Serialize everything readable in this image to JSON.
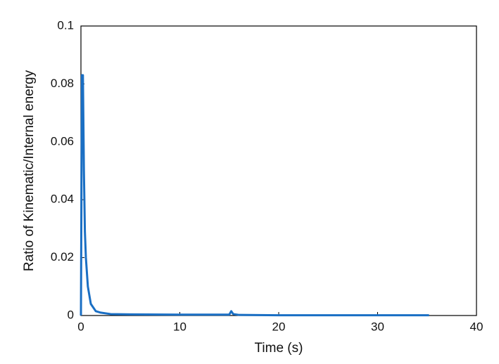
{
  "chart_data": {
    "type": "line",
    "x_label": "Time (s)",
    "y_label": "Ratio of Kinematic/Internal energy",
    "x": [
      0,
      0.1,
      0.2,
      0.3,
      0.4,
      0.5,
      0.7,
      1.0,
      1.5,
      2,
      3,
      5,
      10,
      15,
      15.2,
      15.4,
      16,
      20,
      30,
      35.2
    ],
    "values": [
      0,
      0.083,
      0.083,
      0.05,
      0.029,
      0.02,
      0.01,
      0.004,
      0.0015,
      0.001,
      0.0005,
      0.0004,
      0.0003,
      0.0003,
      0.0015,
      0.0005,
      0.0002,
      0.0001,
      0.0001,
      0.0001
    ],
    "color": "#1a6fc4",
    "xlim": [
      0,
      40
    ],
    "xticks": [
      0,
      10,
      20,
      30,
      40
    ],
    "ylim": [
      0,
      0.1
    ],
    "yticks": [
      0,
      0.02,
      0.04,
      0.06,
      0.08,
      0.1
    ],
    "grid": false
  }
}
